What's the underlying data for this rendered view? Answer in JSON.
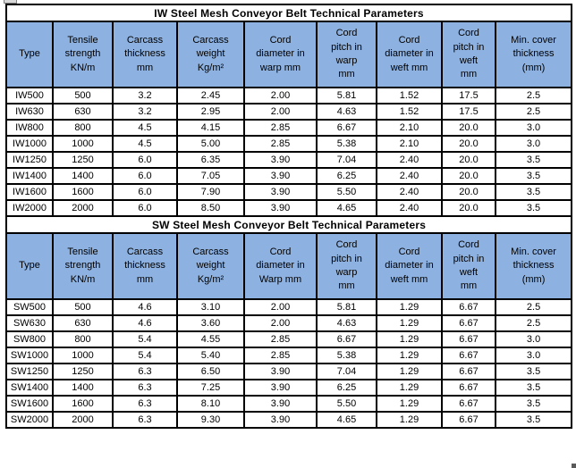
{
  "colors": {
    "header_fill": "#8DB1E0",
    "border": "#000000",
    "text": "#000000",
    "title_fill": "#FFFFFF"
  },
  "tables": [
    {
      "title": "IW Steel Mesh Conveyor Belt Technical Parameters",
      "headers": [
        "Type",
        "Tensile\nstrength\nKN/m",
        "Carcass\nthickness\nmm",
        "Carcass\nweight\nKg/m²",
        "Cord\ndiameter in\nwarp mm",
        "Cord\npitch in\nwarp\nmm",
        "Cord\ndiameter in\nweft mm",
        "Cord\npitch in\nweft\nmm",
        "Min. cover\nthickness\n(mm)"
      ],
      "rows": [
        [
          "IW500",
          "500",
          "3.2",
          "2.45",
          "2.00",
          "5.81",
          "1.52",
          "17.5",
          "2.5"
        ],
        [
          "IW630",
          "630",
          "3.2",
          "2.95",
          "2.00",
          "4.63",
          "1.52",
          "17.5",
          "2.5"
        ],
        [
          "IW800",
          "800",
          "4.5",
          "4.15",
          "2.85",
          "6.67",
          "2.10",
          "20.0",
          "3.0"
        ],
        [
          "IW1000",
          "1000",
          "4.5",
          "5.00",
          "2.85",
          "5.38",
          "2.10",
          "20.0",
          "3.0"
        ],
        [
          "IW1250",
          "1250",
          "6.0",
          "6.35",
          "3.90",
          "7.04",
          "2.40",
          "20.0",
          "3.5"
        ],
        [
          "IW1400",
          "1400",
          "6.0",
          "7.05",
          "3.90",
          "6.25",
          "2.40",
          "20.0",
          "3.5"
        ],
        [
          "IW1600",
          "1600",
          "6.0",
          "7.90",
          "3.90",
          "5.50",
          "2.40",
          "20.0",
          "3.5"
        ],
        [
          "IW2000",
          "2000",
          "6.0",
          "8.50",
          "3.90",
          "4.65",
          "2.40",
          "20.0",
          "3.5"
        ]
      ]
    },
    {
      "title": "SW Steel Mesh Conveyor Belt Technical Parameters",
      "headers": [
        "Type",
        "Tensile\nstrength\nKN/m",
        "Carcass\nthickness\nmm",
        "Carcass\nweight\nKg/m²",
        "Cord\ndiameter in\nWarp mm",
        "Cord\npitch in\nwarp\nmm",
        "Cord\ndiameter in\nweft mm",
        "Cord\npitch in\nweft\nmm",
        "Min. cover\nthickness\n(mm)"
      ],
      "rows": [
        [
          "SW500",
          "500",
          "4.6",
          "3.10",
          "2.00",
          "5.81",
          "1.29",
          "6.67",
          "2.5"
        ],
        [
          "SW630",
          "630",
          "4.6",
          "3.60",
          "2.00",
          "4.63",
          "1.29",
          "6.67",
          "2.5"
        ],
        [
          "SW800",
          "800",
          "5.4",
          "4.55",
          "2.85",
          "6.67",
          "1.29",
          "6.67",
          "3.0"
        ],
        [
          "SW1000",
          "1000",
          "5.4",
          "5.40",
          "2.85",
          "5.38",
          "1.29",
          "6.67",
          "3.0"
        ],
        [
          "SW1250",
          "1250",
          "6.3",
          "6.50",
          "3.90",
          "7.04",
          "1.29",
          "6.67",
          "3.5"
        ],
        [
          "SW1400",
          "1400",
          "6.3",
          "7.25",
          "3.90",
          "6.25",
          "1.29",
          "6.67",
          "3.5"
        ],
        [
          "SW1600",
          "1600",
          "6.3",
          "8.10",
          "3.90",
          "5.50",
          "1.29",
          "6.67",
          "3.5"
        ],
        [
          "SW2000",
          "2000",
          "6.3",
          "9.30",
          "3.90",
          "4.65",
          "1.29",
          "6.67",
          "3.5"
        ]
      ]
    }
  ]
}
